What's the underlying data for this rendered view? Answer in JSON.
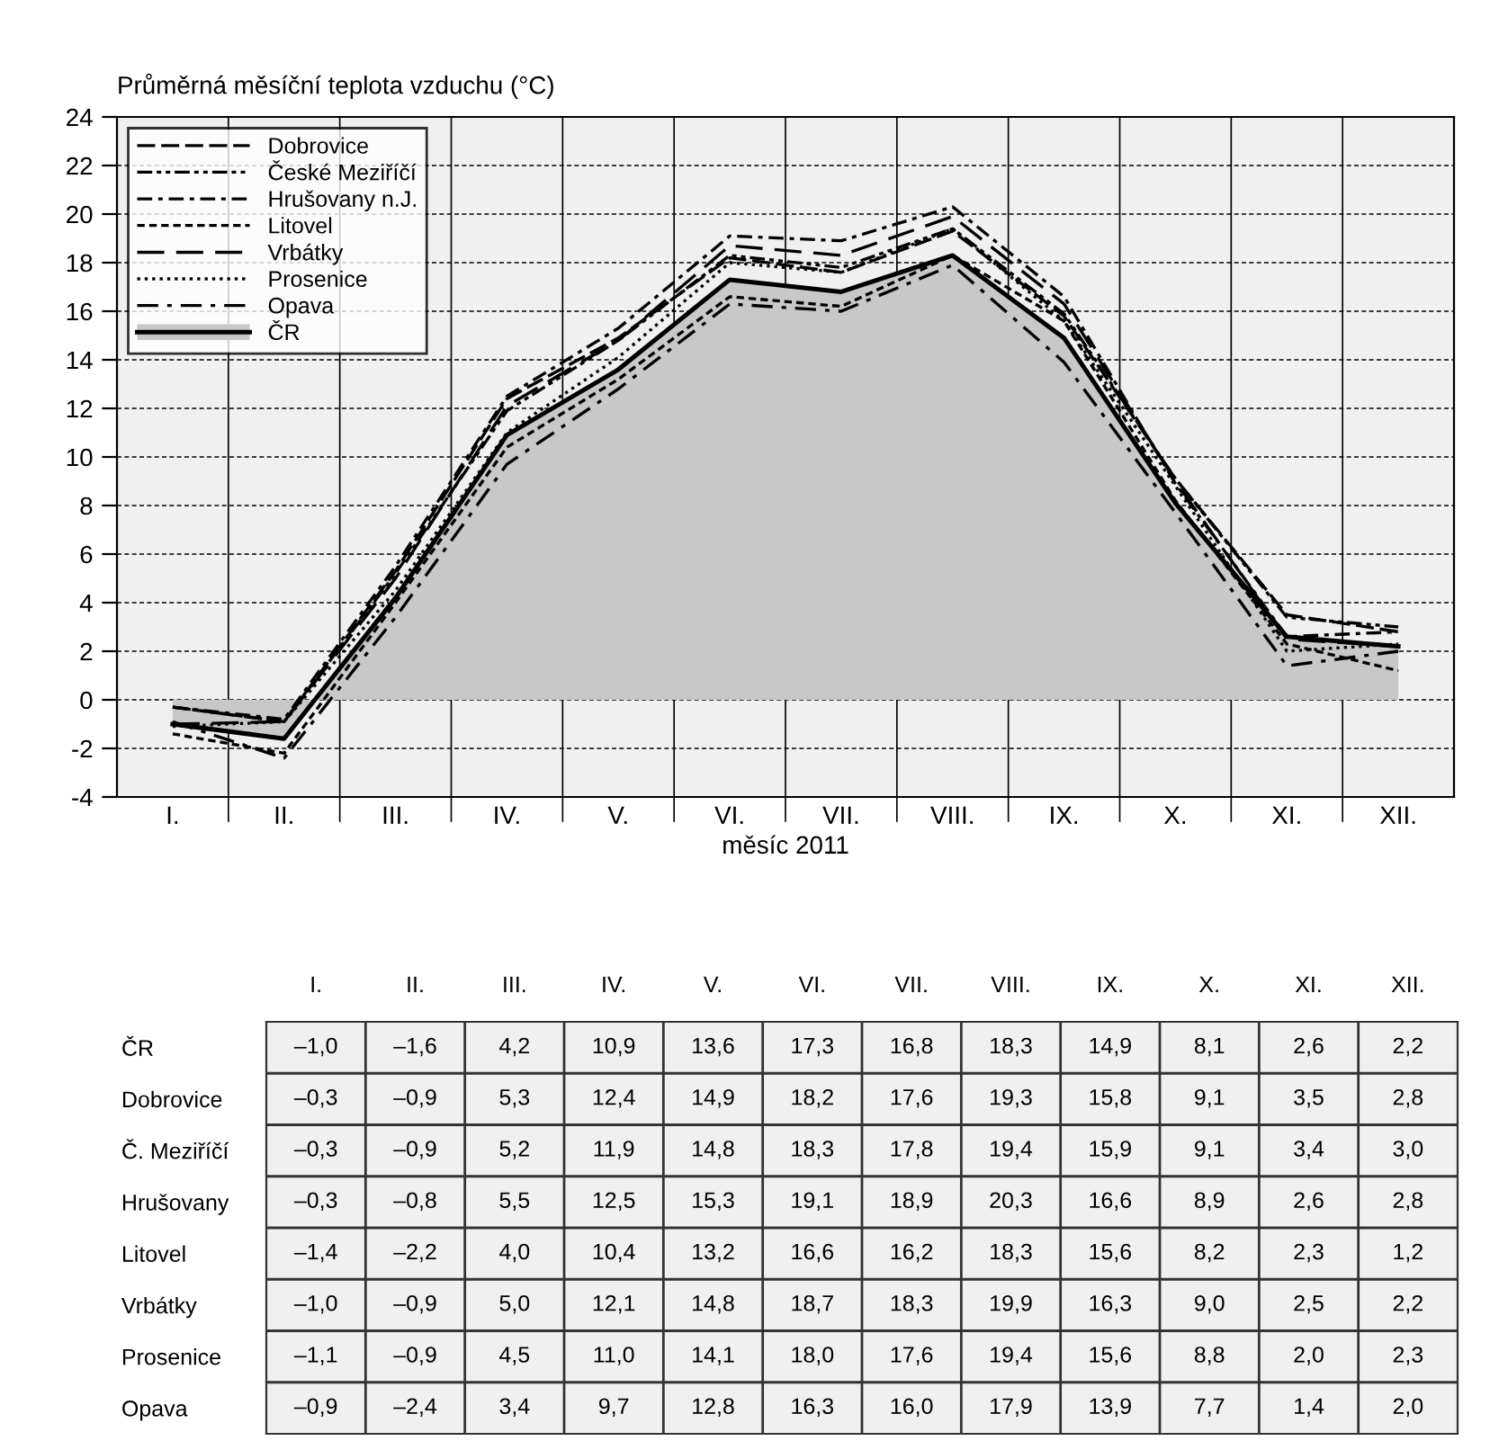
{
  "chart_data": [
    {
      "type": "line",
      "ylabel": "Průměrná měsíční teplota vzduchu (°C)",
      "xlabel": "měsíc 2011",
      "categories": [
        "I.",
        "II.",
        "III.",
        "IV.",
        "V.",
        "VI.",
        "VII.",
        "VIII.",
        "IX.",
        "X.",
        "XI.",
        "XII."
      ],
      "ylim": [
        -4,
        24
      ],
      "yticks": [
        -4,
        -2,
        0,
        2,
        4,
        6,
        8,
        10,
        12,
        14,
        16,
        18,
        20,
        22,
        24
      ],
      "grid": true,
      "legend": "top left",
      "series": [
        {
          "name": "Dobrovice",
          "color": "#000000",
          "line_style": "dashed",
          "values": [
            -0.3,
            -0.9,
            5.3,
            12.4,
            14.9,
            18.2,
            17.6,
            19.3,
            15.8,
            9.1,
            3.5,
            2.8
          ]
        },
        {
          "name": "České Meziříčí",
          "color": "#000000",
          "line_style": "dashdotdot",
          "values": [
            -0.3,
            -0.9,
            5.2,
            11.9,
            14.8,
            18.3,
            17.8,
            19.4,
            15.9,
            9.1,
            3.4,
            3.0
          ]
        },
        {
          "name": "Hrušovany n.J.",
          "color": "#000000",
          "line_style": "dashdot",
          "values": [
            -0.3,
            -0.8,
            5.5,
            12.5,
            15.3,
            19.1,
            18.9,
            20.3,
            16.6,
            8.9,
            2.6,
            2.8
          ]
        },
        {
          "name": "Litovel",
          "color": "#000000",
          "line_style": "densedashed",
          "values": [
            -1.4,
            -2.2,
            4.0,
            10.4,
            13.2,
            16.6,
            16.2,
            18.3,
            15.6,
            8.2,
            2.3,
            1.2
          ]
        },
        {
          "name": "Vrbátky",
          "color": "#000000",
          "line_style": "longdashed",
          "values": [
            -1.0,
            -0.9,
            5.0,
            12.1,
            14.8,
            18.7,
            18.3,
            19.9,
            16.3,
            9.0,
            2.5,
            2.2
          ]
        },
        {
          "name": "Prosenice",
          "color": "#000000",
          "line_style": "dotted",
          "values": [
            -1.1,
            -0.9,
            4.5,
            11.0,
            14.1,
            18.0,
            17.6,
            19.4,
            15.6,
            8.8,
            2.0,
            2.3
          ]
        },
        {
          "name": "Opava",
          "color": "#000000",
          "line_style": "longdashdot",
          "values": [
            -0.9,
            -2.4,
            3.4,
            9.7,
            12.8,
            16.3,
            16.0,
            17.9,
            13.9,
            7.7,
            1.4,
            2.0
          ]
        },
        {
          "name": "ČR",
          "type": "area",
          "color": "#c8c8c8",
          "line_style": "solid",
          "values": [
            -1.0,
            -1.6,
            4.2,
            10.9,
            13.6,
            17.3,
            16.8,
            18.3,
            14.9,
            8.1,
            2.6,
            2.2
          ]
        }
      ]
    },
    {
      "type": "heatmap",
      "categories": [
        "I.",
        "II.",
        "III.",
        "IV.",
        "V.",
        "VI.",
        "VII.",
        "VIII.",
        "IX.",
        "X.",
        "XI.",
        "XII."
      ],
      "y_categories": [
        "ČR",
        "Dobrovice",
        "Č. Meziříčí",
        "Hrušovany",
        "Litovel",
        "Vrbátky",
        "Prosenice",
        "Opava"
      ],
      "cells": [
        [
          null,
          null,
          null,
          null,
          null,
          null,
          null,
          null,
          null,
          null,
          null,
          null
        ],
        [
          null,
          null,
          null,
          null,
          null,
          null,
          null,
          null,
          null,
          null,
          null,
          null
        ],
        [
          null,
          null,
          null,
          null,
          null,
          null,
          null,
          null,
          null,
          null,
          null,
          null
        ],
        [
          null,
          null,
          null,
          null,
          null,
          null,
          null,
          null,
          null,
          null,
          null,
          null
        ],
        [
          null,
          null,
          null,
          null,
          null,
          null,
          null,
          null,
          null,
          null,
          null,
          null
        ],
        [
          null,
          null,
          null,
          null,
          null,
          null,
          null,
          null,
          null,
          null,
          null,
          null
        ],
        [
          null,
          null,
          null,
          null,
          null,
          null,
          null,
          null,
          null,
          null,
          null,
          null
        ],
        [
          null,
          null,
          null,
          null,
          null,
          null,
          null,
          null,
          null,
          null,
          null,
          null
        ]
      ],
      "cell_labels": [
        [
          "–1,0",
          "–1,6",
          "4,2",
          "10,9",
          "13,6",
          "17,3",
          "16,8",
          "18,3",
          "14,9",
          "8,1",
          "2,6",
          "2,2"
        ],
        [
          "–0,3",
          "–0,9",
          "5,3",
          "12,4",
          "14,9",
          "18,2",
          "17,6",
          "19,3",
          "15,8",
          "9,1",
          "3,5",
          "2,8"
        ],
        [
          "–0,3",
          "–0,9",
          "5,2",
          "11,9",
          "14,8",
          "18,3",
          "17,8",
          "19,4",
          "15,9",
          "9,1",
          "3,4",
          "3,0"
        ],
        [
          "–0,3",
          "–0,8",
          "5,5",
          "12,5",
          "15,3",
          "19,1",
          "18,9",
          "20,3",
          "16,6",
          "8,9",
          "2,6",
          "2,8"
        ],
        [
          "–1,4",
          "–2,2",
          "4,0",
          "10,4",
          "13,2",
          "16,6",
          "16,2",
          "18,3",
          "15,6",
          "8,2",
          "2,3",
          "1,2"
        ],
        [
          "–1,0",
          "–0,9",
          "5,0",
          "12,1",
          "14,8",
          "18,7",
          "18,3",
          "19,9",
          "16,3",
          "9,0",
          "2,5",
          "2,2"
        ],
        [
          "–1,1",
          "–0,9",
          "4,5",
          "11,0",
          "14,1",
          "18,0",
          "17,6",
          "19,4",
          "15,6",
          "8,8",
          "2,0",
          "2,3"
        ],
        [
          "–0,9",
          "–2,4",
          "3,4",
          "9,7",
          "12,8",
          "16,3",
          "16,0",
          "17,9",
          "13,9",
          "7,7",
          "1,4",
          "2,0"
        ]
      ]
    }
  ]
}
